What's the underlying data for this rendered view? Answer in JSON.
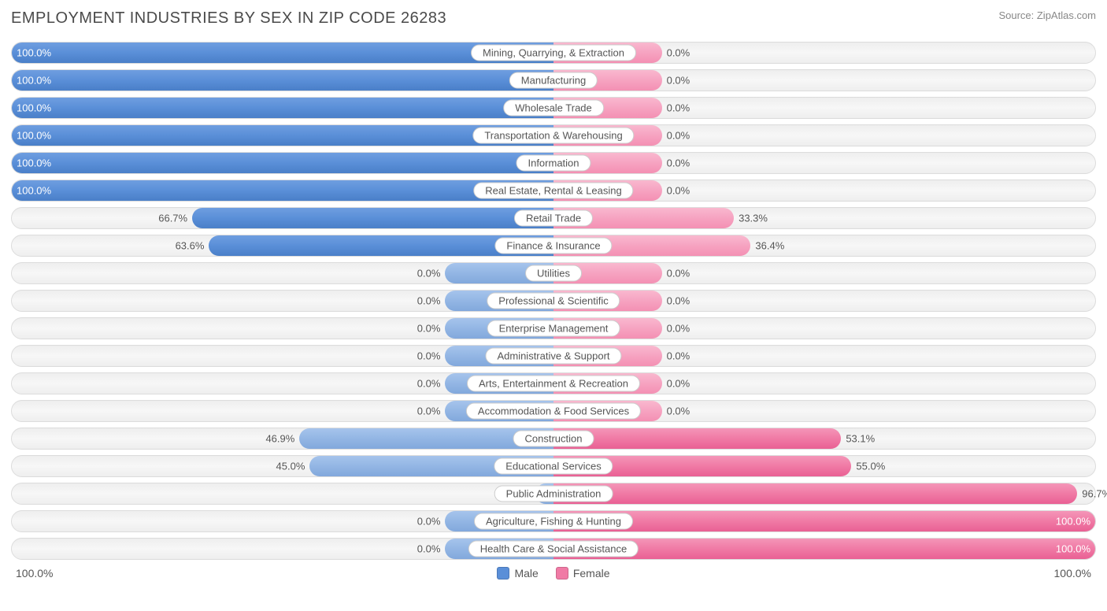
{
  "title": "EMPLOYMENT INDUSTRIES BY SEX IN ZIP CODE 26283",
  "source": "Source: ZipAtlas.com",
  "chart": {
    "type": "diverging-bar",
    "axis_left_label": "100.0%",
    "axis_right_label": "100.0%",
    "colors": {
      "male_full": "#5a8fd8",
      "male_light": "#93b6e4",
      "female_full": "#f07aa5",
      "female_light": "#f6a3c1",
      "track_bg": "#eeeeee",
      "track_border": "#dcdcdc",
      "text": "#555555",
      "title_text": "#4a4a4a",
      "source_text": "#888888",
      "pill_bg": "#ffffff",
      "pill_border": "#cccccc"
    },
    "legend": [
      {
        "label": "Male",
        "color": "#5a8fd8"
      },
      {
        "label": "Female",
        "color": "#f07aa5"
      }
    ],
    "default_bar_pct": 20.0,
    "rows": [
      {
        "category": "Mining, Quarrying, & Extraction",
        "male": 100.0,
        "female": 0.0
      },
      {
        "category": "Manufacturing",
        "male": 100.0,
        "female": 0.0
      },
      {
        "category": "Wholesale Trade",
        "male": 100.0,
        "female": 0.0
      },
      {
        "category": "Transportation & Warehousing",
        "male": 100.0,
        "female": 0.0
      },
      {
        "category": "Information",
        "male": 100.0,
        "female": 0.0
      },
      {
        "category": "Real Estate, Rental & Leasing",
        "male": 100.0,
        "female": 0.0
      },
      {
        "category": "Retail Trade",
        "male": 66.7,
        "female": 33.3
      },
      {
        "category": "Finance & Insurance",
        "male": 63.6,
        "female": 36.4
      },
      {
        "category": "Utilities",
        "male": 0.0,
        "female": 0.0
      },
      {
        "category": "Professional & Scientific",
        "male": 0.0,
        "female": 0.0
      },
      {
        "category": "Enterprise Management",
        "male": 0.0,
        "female": 0.0
      },
      {
        "category": "Administrative & Support",
        "male": 0.0,
        "female": 0.0
      },
      {
        "category": "Arts, Entertainment & Recreation",
        "male": 0.0,
        "female": 0.0
      },
      {
        "category": "Accommodation & Food Services",
        "male": 0.0,
        "female": 0.0
      },
      {
        "category": "Construction",
        "male": 46.9,
        "female": 53.1
      },
      {
        "category": "Educational Services",
        "male": 45.0,
        "female": 55.0
      },
      {
        "category": "Public Administration",
        "male": 3.3,
        "female": 96.7
      },
      {
        "category": "Agriculture, Fishing & Hunting",
        "male": 0.0,
        "female": 100.0
      },
      {
        "category": "Health Care & Social Assistance",
        "male": 0.0,
        "female": 100.0
      }
    ]
  }
}
